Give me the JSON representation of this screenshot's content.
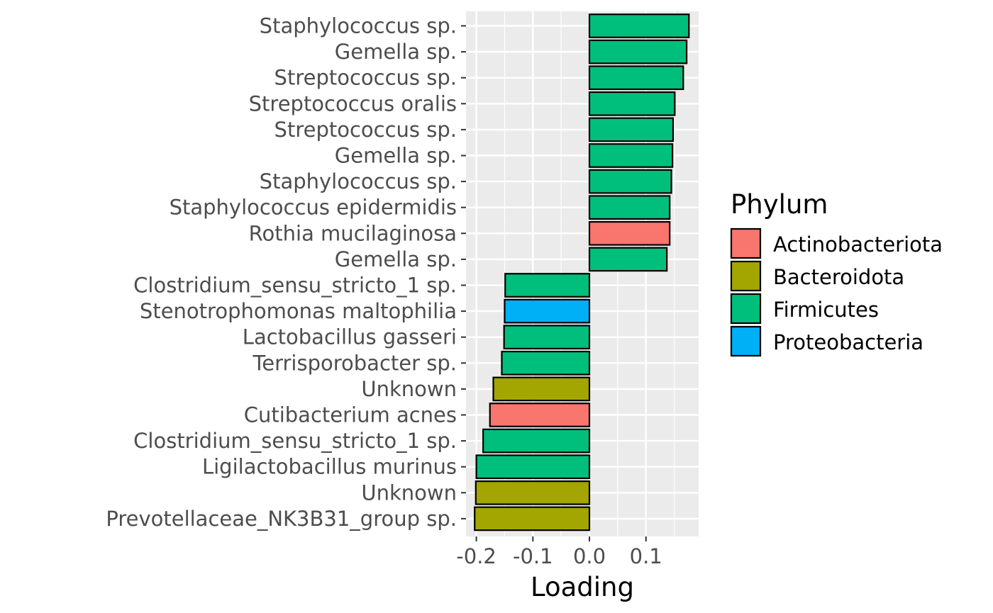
{
  "chart_data": {
    "type": "bar",
    "orientation": "horizontal",
    "title": "",
    "xlabel": "Loading",
    "ylabel": "",
    "xlim": [
      -0.2,
      0.2
    ],
    "xticks": [
      -0.2,
      -0.1,
      0.0,
      0.1
    ],
    "xtick_labels": [
      "-0.2",
      "-0.1",
      "0.0",
      "0.1"
    ],
    "grid": true,
    "legend": {
      "title": "Phylum",
      "placement": "right",
      "entries": [
        {
          "name": "Actinobacteriota",
          "color": "#F8766D"
        },
        {
          "name": "Bacteroidota",
          "color": "#A3A500"
        },
        {
          "name": "Firmicutes",
          "color": "#00BF7D"
        },
        {
          "name": "Proteobacteria",
          "color": "#00B0F6"
        }
      ]
    },
    "categories": [
      "Staphylococcus sp.",
      "Gemella sp.",
      "Streptococcus sp.",
      "Streptococcus oralis",
      "Streptococcus sp.",
      "Gemella sp.",
      "Staphylococcus sp.",
      "Staphylococcus epidermidis",
      "Rothia mucilaginosa",
      "Gemella sp.",
      "Clostridium_sensu_stricto_1 sp.",
      "Stenotrophomonas maltophilia",
      "Lactobacillus gasseri",
      "Terrisporobacter sp.",
      "Unknown",
      "Cutibacterium acnes",
      "Clostridium_sensu_stricto_1 sp.",
      "Ligilactobacillus murinus",
      "Unknown",
      "Prevotellaceae_NK3B31_group sp."
    ],
    "values": [
      0.176,
      0.172,
      0.166,
      0.151,
      0.148,
      0.147,
      0.145,
      0.142,
      0.142,
      0.137,
      -0.149,
      -0.15,
      -0.151,
      -0.155,
      -0.17,
      -0.176,
      -0.188,
      -0.2,
      -0.201,
      -0.203
    ],
    "phylum": [
      "Firmicutes",
      "Firmicutes",
      "Firmicutes",
      "Firmicutes",
      "Firmicutes",
      "Firmicutes",
      "Firmicutes",
      "Firmicutes",
      "Actinobacteriota",
      "Firmicutes",
      "Firmicutes",
      "Proteobacteria",
      "Firmicutes",
      "Firmicutes",
      "Bacteroidota",
      "Actinobacteriota",
      "Firmicutes",
      "Firmicutes",
      "Bacteroidota",
      "Bacteroidota"
    ],
    "colors": {
      "panel_background": "#EBEBEB",
      "gridline": "#FFFFFF",
      "bar_outline": "#000000",
      "tick_text": "#4D4D4D"
    }
  }
}
